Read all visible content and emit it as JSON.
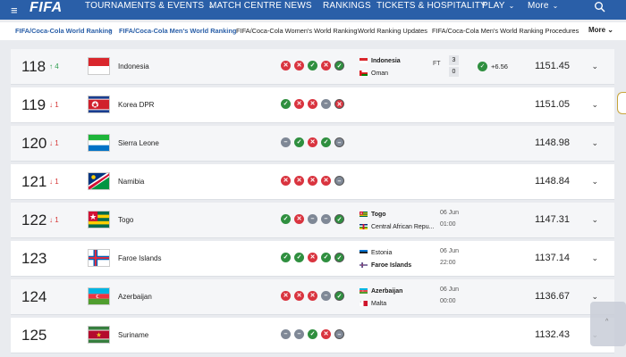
{
  "nav": {
    "menu_icon": "hamburger-icon",
    "logo": "FIFA",
    "items": [
      {
        "label": "TOURNAMENTS & EVENTS",
        "has_chevron": true
      },
      {
        "label": "MATCH CENTRE",
        "has_chevron": false
      },
      {
        "label": "NEWS",
        "has_chevron": false
      },
      {
        "label": "RANKINGS",
        "has_chevron": false
      },
      {
        "label": "TICKETS & HOSPITALITY",
        "has_chevron": false
      },
      {
        "label": "PLAY",
        "has_chevron": true
      },
      {
        "label": "More",
        "has_chevron": true
      }
    ],
    "search_icon": "search-icon",
    "bg_color": "#2a5fa8"
  },
  "subnav": {
    "crumbs": [
      {
        "label": "FIFA/Coca-Cola World Ranking",
        "style": "link"
      },
      {
        "label": "FIFA/Coca-Cola Men's World Ranking",
        "style": "link"
      },
      {
        "label": "FIFA/Coca-Cola Women's World Ranking",
        "style": "plain"
      },
      {
        "label": "World Ranking Updates",
        "style": "plain"
      },
      {
        "label": "FIFA/Coca-Cola Men's World Ranking Procedures",
        "style": "plain"
      }
    ],
    "more_label": "More"
  },
  "rows": [
    {
      "rank": "118",
      "move": "↑ 4",
      "move_dir": "up",
      "team": "Indonesia",
      "flag": "indonesia",
      "form": [
        "L",
        "L",
        "W",
        "L",
        "W"
      ],
      "match": {
        "team1": "Indonesia",
        "team1_flag": "indonesia",
        "team1_bold": true,
        "team2": "Oman",
        "team2_flag": "oman",
        "team2_bold": false,
        "status": "FT",
        "score1": "3",
        "score2": "0"
      },
      "change": "+6.56",
      "points": "1151.45"
    },
    {
      "rank": "119",
      "move": "↓ 1",
      "move_dir": "down",
      "team": "Korea DPR",
      "flag": "korea-dpr",
      "form": [
        "W",
        "L",
        "L",
        "D",
        "L"
      ],
      "points": "1151.05"
    },
    {
      "rank": "120",
      "move": "↓ 1",
      "move_dir": "down",
      "team": "Sierra Leone",
      "flag": "sierra-leone",
      "form": [
        "D",
        "W",
        "L",
        "W",
        "D"
      ],
      "points": "1148.98"
    },
    {
      "rank": "121",
      "move": "↓ 1",
      "move_dir": "down",
      "team": "Namibia",
      "flag": "namibia",
      "form": [
        "L",
        "L",
        "L",
        "L",
        "D"
      ],
      "points": "1148.84"
    },
    {
      "rank": "122",
      "move": "↓ 1",
      "move_dir": "down",
      "team": "Togo",
      "flag": "togo",
      "form": [
        "W",
        "L",
        "D",
        "D",
        "W"
      ],
      "match": {
        "team1": "Togo",
        "team1_flag": "togo",
        "team1_bold": true,
        "team2": "Central African Repu...",
        "team2_flag": "car",
        "team2_bold": false,
        "date": "06 Jun",
        "time": "01:00"
      },
      "points": "1147.31"
    },
    {
      "rank": "123",
      "move": "",
      "move_dir": "",
      "team": "Faroe Islands",
      "flag": "faroe",
      "form": [
        "W",
        "W",
        "L",
        "W",
        "W"
      ],
      "match": {
        "team1": "Estonia",
        "team1_flag": "estonia",
        "team1_bold": false,
        "team2": "Faroe Islands",
        "team2_flag": "faroe",
        "team2_bold": true,
        "date": "06 Jun",
        "time": "22:00"
      },
      "points": "1137.14"
    },
    {
      "rank": "124",
      "move": "",
      "move_dir": "",
      "team": "Azerbaijan",
      "flag": "azerbaijan",
      "form": [
        "L",
        "L",
        "L",
        "D",
        "W"
      ],
      "match": {
        "team1": "Azerbaijan",
        "team1_flag": "azerbaijan",
        "team1_bold": true,
        "team2": "Malta",
        "team2_flag": "malta",
        "team2_bold": false,
        "date": "06 Jun",
        "time": "00:00"
      },
      "points": "1136.67"
    },
    {
      "rank": "125",
      "move": "",
      "move_dir": "",
      "team": "Suriname",
      "flag": "suriname",
      "form": [
        "D",
        "D",
        "W",
        "L",
        "D"
      ],
      "points": "1132.43"
    }
  ],
  "colors": {
    "win": "#2f8f3f",
    "loss": "#d9343f",
    "draw": "#7f8896",
    "up": "#2e9e4f",
    "down": "#d63838"
  },
  "icons": {
    "expand": "chevron-down-icon",
    "scroll_up": "chevron-up-icon"
  }
}
